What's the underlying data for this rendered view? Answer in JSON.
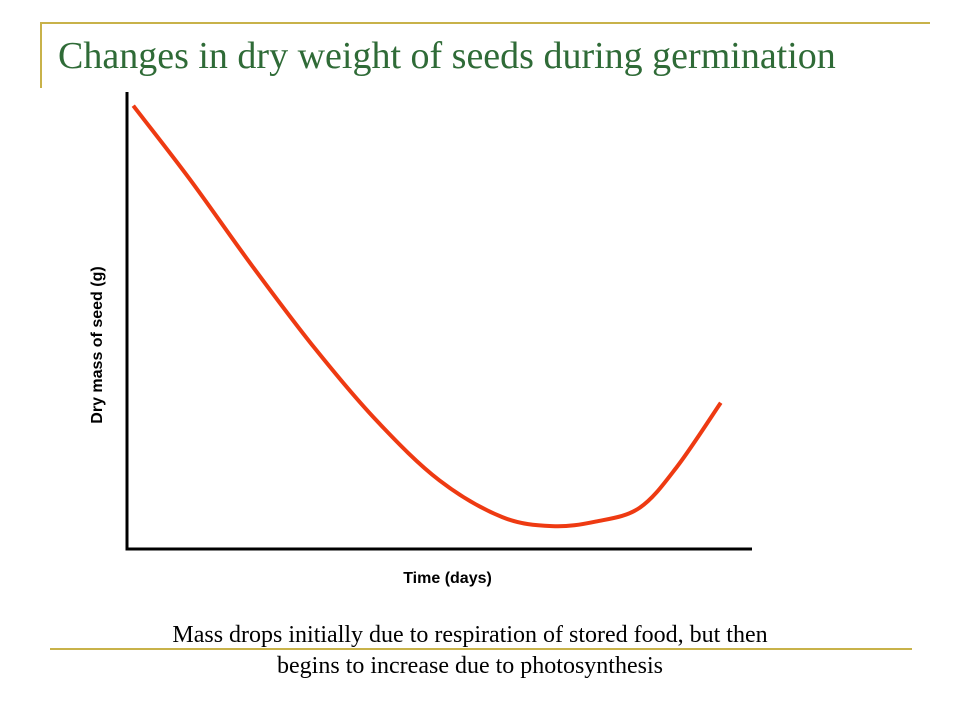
{
  "slide": {
    "title": "Changes in dry weight of seeds during germination",
    "caption_line1": "Mass drops initially due to respiration of stored food, but then",
    "caption_line2": "begins to increase due to photosynthesis"
  },
  "colors": {
    "accent_rule": "#c8b24a",
    "title": "#2f6b37",
    "curve": "#ee3a12",
    "axis": "#000000"
  },
  "chart_data": {
    "type": "line",
    "title": "",
    "xlabel": "Time (days)",
    "ylabel": "Dry mass of seed (g)",
    "x_ticks": false,
    "y_ticks": false,
    "grid": false,
    "legend": "none",
    "xlim": [
      0,
      10
    ],
    "ylim": [
      0,
      10
    ],
    "series": [
      {
        "name": "",
        "x": [
          0.1,
          1.0,
          2.0,
          3.0,
          4.0,
          5.0,
          6.0,
          6.8,
          7.5,
          8.2,
          8.8,
          9.5
        ],
        "y": [
          9.7,
          8.1,
          6.2,
          4.4,
          2.8,
          1.5,
          0.7,
          0.5,
          0.6,
          0.9,
          1.8,
          3.2
        ]
      }
    ]
  }
}
